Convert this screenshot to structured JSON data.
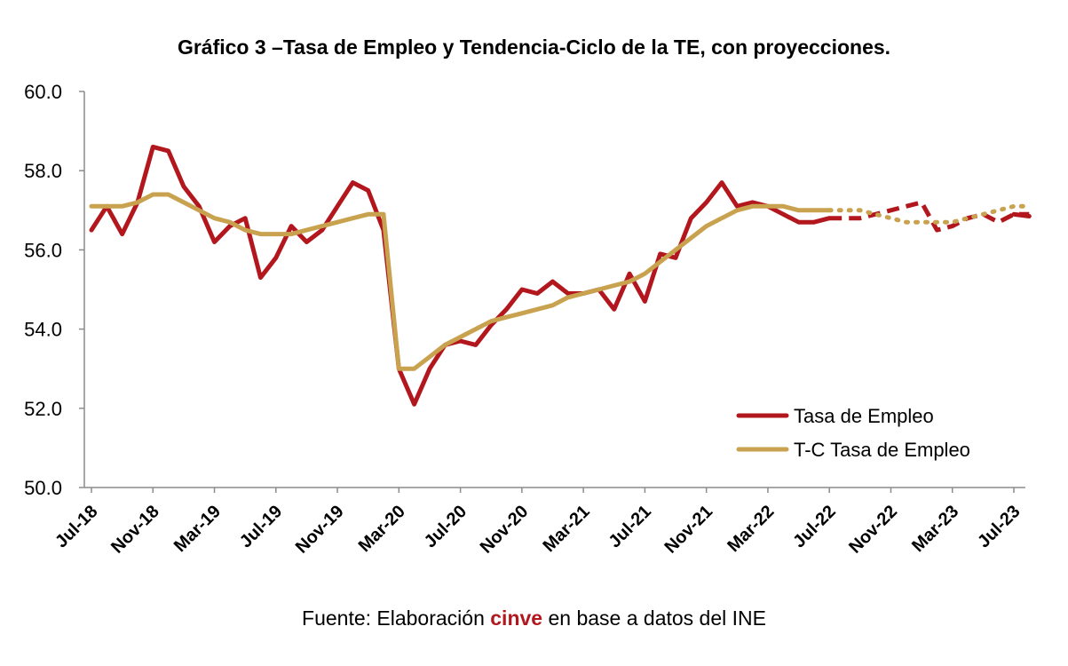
{
  "title": "Gráfico 3 –Tasa de Empleo y Tendencia-Ciclo de la TE, con proyecciones.",
  "source": {
    "prefix": "Fuente: Elaboración ",
    "brand": "cinve",
    "suffix": " en base a datos del INE"
  },
  "colors": {
    "tasa": "#b3171e",
    "tc": "#c9a24f",
    "axis": "#8c8c8c"
  },
  "chart_data": {
    "type": "line",
    "ylim": [
      50,
      60
    ],
    "yticks": [
      "50.0",
      "52.0",
      "54.0",
      "56.0",
      "58.0",
      "60.0"
    ],
    "xlim": [
      "2018-07",
      "2023-07"
    ],
    "xticks": [
      "Jul-18",
      "Nov-18",
      "Mar-19",
      "Jul-19",
      "Nov-19",
      "Mar-20",
      "Jul-20",
      "Nov-20",
      "Mar-21",
      "Jul-21",
      "Nov-21",
      "Mar-22",
      "Jul-22",
      "Nov-22",
      "Mar-23",
      "Jul-23"
    ],
    "legend_position": "bottom-right",
    "grid": false,
    "series": [
      {
        "name": "Tasa de Empleo",
        "color": "#b3171e",
        "style": "solid",
        "start": "2018-07",
        "values": [
          56.5,
          57.1,
          56.4,
          57.2,
          58.6,
          58.5,
          57.6,
          57.1,
          56.2,
          56.6,
          56.8,
          55.3,
          55.8,
          56.6,
          56.2,
          56.5,
          57.1,
          57.7,
          57.5,
          56.5,
          53.0,
          52.1,
          53.0,
          53.6,
          53.7,
          53.6,
          54.1,
          54.5,
          55.0,
          54.9,
          55.2,
          54.9,
          54.9,
          55.0,
          54.5,
          55.4,
          54.7,
          55.9,
          55.8,
          56.8,
          57.2,
          57.7,
          57.1,
          57.2,
          57.1,
          56.9,
          56.7,
          56.7,
          56.8
        ]
      },
      {
        "name": "T-C Tasa de Empleo",
        "color": "#c9a24f",
        "style": "solid",
        "start": "2018-07",
        "values": [
          57.1,
          57.1,
          57.1,
          57.2,
          57.4,
          57.4,
          57.2,
          57.0,
          56.8,
          56.7,
          56.5,
          56.4,
          56.4,
          56.4,
          56.5,
          56.6,
          56.7,
          56.8,
          56.9,
          56.9,
          53.0,
          53.0,
          53.3,
          53.6,
          53.8,
          54.0,
          54.2,
          54.3,
          54.4,
          54.5,
          54.6,
          54.8,
          54.9,
          55.0,
          55.1,
          55.2,
          55.4,
          55.7,
          56.0,
          56.3,
          56.6,
          56.8,
          57.0,
          57.1,
          57.1,
          57.1,
          57.0,
          57.0,
          57.0
        ]
      },
      {
        "name": "",
        "color": "#b3171e",
        "style": "dashed",
        "start": "2022-07",
        "values": [
          56.8,
          56.8,
          56.8,
          56.9,
          57.0,
          57.1,
          57.2,
          56.5,
          56.6,
          56.8,
          56.9,
          56.7,
          56.9,
          56.9
        ]
      },
      {
        "name": "",
        "color": "#c9a24f",
        "style": "dotted",
        "start": "2022-07",
        "values": [
          57.0,
          57.0,
          57.0,
          56.9,
          56.8,
          56.7,
          56.7,
          56.7,
          56.7,
          56.8,
          56.9,
          57.0,
          57.1,
          57.1
        ]
      },
      {
        "name": "",
        "color": "#b3171e",
        "style": "solid",
        "start": "2023-07",
        "values": [
          56.9,
          56.85
        ]
      }
    ]
  }
}
